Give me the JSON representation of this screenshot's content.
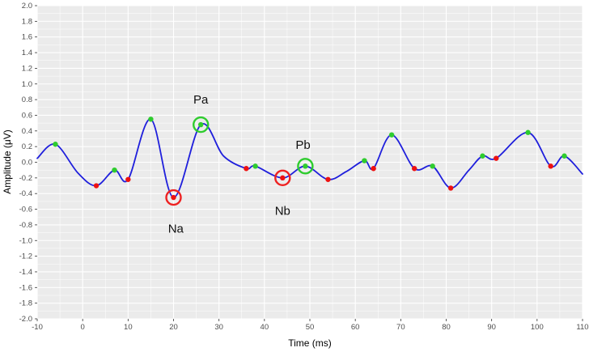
{
  "chart_data": {
    "type": "line",
    "title": "",
    "xlabel": "Time (ms)",
    "ylabel": "Amplitude (μV)",
    "xlim": [
      -10,
      110
    ],
    "ylim": [
      -2,
      2
    ],
    "x_ticks": [
      -10,
      0,
      10,
      20,
      30,
      40,
      50,
      60,
      70,
      80,
      90,
      100,
      110
    ],
    "x_tick_labels": [
      "-10",
      "0",
      "10",
      "20",
      "30",
      "40",
      "50",
      "60",
      "70",
      "80",
      "90",
      "100",
      "110"
    ],
    "y_ticks": [
      2,
      1.8,
      1.6,
      1.4,
      1.2,
      1,
      0.8,
      0.6,
      0.4,
      0.2,
      0,
      -0.2,
      -0.4,
      -0.6,
      -0.8,
      -1,
      -1.2,
      -1.4,
      -1.6,
      -1.8,
      -2
    ],
    "y_tick_labels": [
      "2.0",
      "1.8",
      "1.6",
      "1.4",
      "1.2",
      "1.0",
      "0.8",
      "0.6",
      "0.4",
      "0.2",
      "0.0",
      "-0.2",
      "-0.4",
      "-0.6",
      "-0.8",
      "-1.0",
      "-1.2",
      "-1.4",
      "-1.6",
      "-1.8",
      "-2.0"
    ],
    "grid": {
      "major": true,
      "minor": true,
      "panel_bg": "#ebebeb",
      "grid_color": "#ffffff"
    },
    "line": {
      "color": "#1f1fdc",
      "width": 1.8
    },
    "waveform": [
      [
        -10,
        0.05
      ],
      [
        -6,
        0.23
      ],
      [
        -1,
        -0.14
      ],
      [
        3,
        -0.3
      ],
      [
        7,
        -0.1
      ],
      [
        10,
        -0.22
      ],
      [
        15,
        0.55
      ],
      [
        20,
        -0.45
      ],
      [
        26,
        0.48
      ],
      [
        31,
        0.08
      ],
      [
        36,
        -0.08
      ],
      [
        38,
        -0.05
      ],
      [
        44,
        -0.2
      ],
      [
        49,
        -0.05
      ],
      [
        54,
        -0.22
      ],
      [
        58,
        -0.12
      ],
      [
        62,
        0.02
      ],
      [
        64,
        -0.08
      ],
      [
        68,
        0.35
      ],
      [
        73,
        -0.08
      ],
      [
        77,
        -0.05
      ],
      [
        81,
        -0.33
      ],
      [
        85,
        -0.1
      ],
      [
        88,
        0.08
      ],
      [
        91,
        0.05
      ],
      [
        98,
        0.38
      ],
      [
        103,
        -0.05
      ],
      [
        106,
        0.08
      ],
      [
        110,
        -0.15
      ]
    ],
    "peaks": {
      "name": "local-maxima",
      "color": "#2ecc2e",
      "points": [
        [
          -6,
          0.23
        ],
        [
          7,
          -0.1
        ],
        [
          15,
          0.55
        ],
        [
          26,
          0.48
        ],
        [
          38,
          -0.05
        ],
        [
          49,
          -0.05
        ],
        [
          62,
          0.02
        ],
        [
          68,
          0.35
        ],
        [
          77,
          -0.05
        ],
        [
          88,
          0.08
        ],
        [
          98,
          0.38
        ],
        [
          106,
          0.08
        ]
      ]
    },
    "troughs": {
      "name": "local-minima",
      "color": "#ee1111",
      "points": [
        [
          3,
          -0.3
        ],
        [
          10,
          -0.22
        ],
        [
          20,
          -0.45
        ],
        [
          36,
          -0.08
        ],
        [
          44,
          -0.2
        ],
        [
          54,
          -0.22
        ],
        [
          64,
          -0.08
        ],
        [
          73,
          -0.08
        ],
        [
          81,
          -0.33
        ],
        [
          91,
          0.05
        ],
        [
          103,
          -0.05
        ]
      ]
    },
    "annotations": [
      {
        "label": "Pa",
        "point": [
          26,
          0.48
        ],
        "circle_color": "#2ecc2e",
        "label_pos": [
          26,
          0.8
        ]
      },
      {
        "label": "Na",
        "point": [
          20,
          -0.45
        ],
        "circle_color": "#ee2222",
        "label_pos": [
          20.5,
          -0.85
        ]
      },
      {
        "label": "Nb",
        "point": [
          44,
          -0.2
        ],
        "circle_color": "#ee2222",
        "label_pos": [
          44,
          -0.62
        ]
      },
      {
        "label": "Pb",
        "point": [
          49,
          -0.05
        ],
        "circle_color": "#2ecc2e",
        "label_pos": [
          48.5,
          0.22
        ]
      }
    ]
  }
}
